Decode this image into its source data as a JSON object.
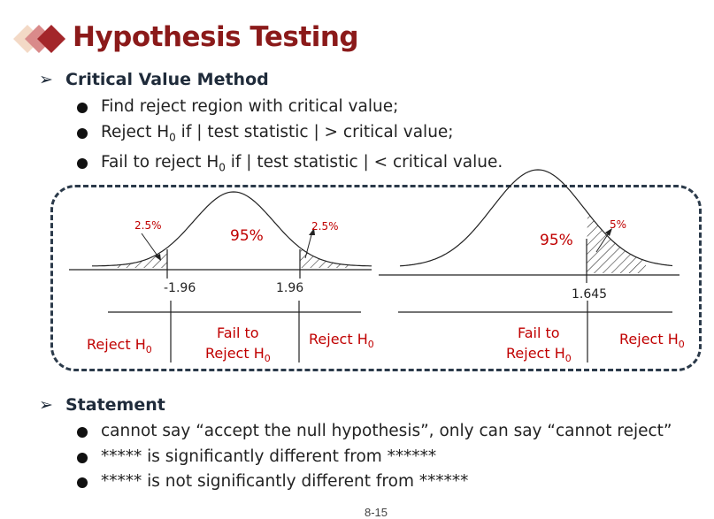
{
  "title": "Hypothesis Testing",
  "sections": [
    {
      "heading": "Critical Value Method",
      "bullets": [
        "Find reject region with critical value;",
        "Reject H0 if | test statistic | > critical value;",
        "Fail to reject H0 if | test statistic | < critical value."
      ]
    },
    {
      "heading": "Statement",
      "bullets": [
        "cannot say “accept the null hypothesis”, only can say “cannot reject”",
        "***** is significantly different from ******",
        "***** is not significantly different from ******"
      ]
    }
  ],
  "two_tailed": {
    "center_label": "95%",
    "left_tail_label": "2.5%",
    "right_tail_label": "2.5%",
    "left_critical": "-1.96",
    "right_critical": "1.96",
    "regions": {
      "left": "Reject H0",
      "middle_line1": "Fail to",
      "middle_line2": "Reject H0",
      "right": "Reject H0"
    }
  },
  "one_tailed": {
    "center_label": "95%",
    "tail_label": "5%",
    "critical": "1.645",
    "regions": {
      "middle_line1": "Fail to",
      "middle_line2": "Reject H0",
      "right": "Reject H0"
    }
  },
  "colors": {
    "title": "#8b1a1a",
    "annotation": "#c00000",
    "heading": "#1f2b3a",
    "panel_border": "#2b3a4a"
  },
  "page_number": "8-15"
}
